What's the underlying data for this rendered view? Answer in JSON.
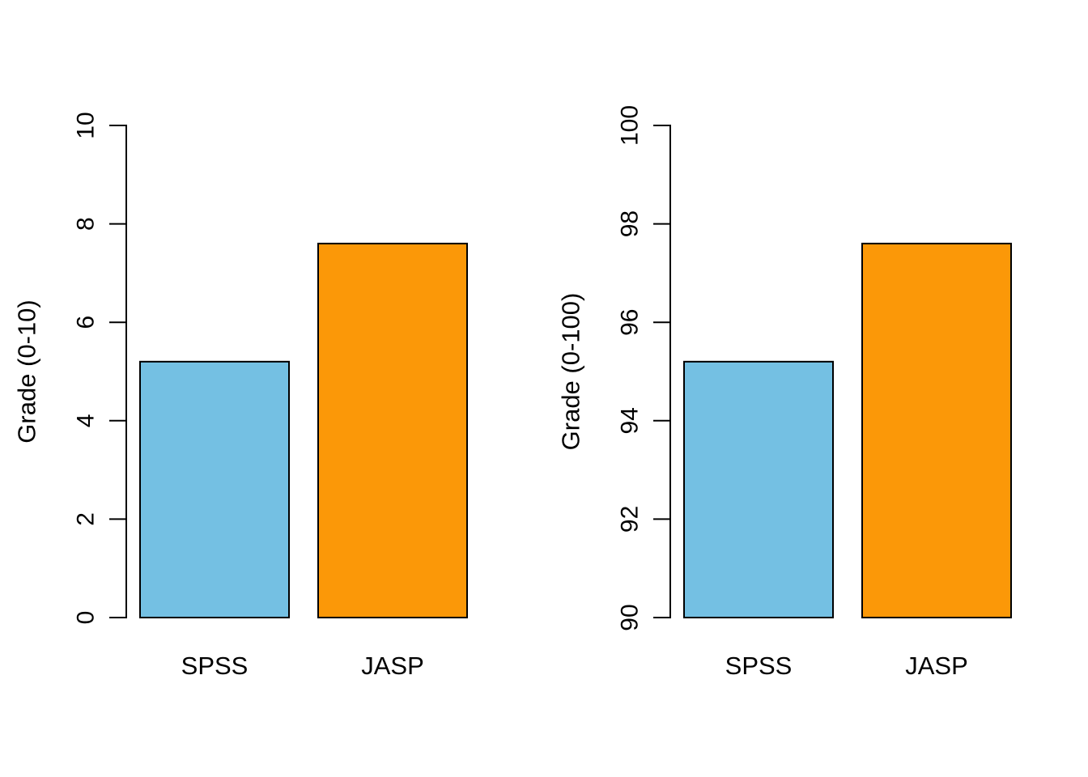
{
  "figure": {
    "background_color": "#ffffff",
    "axis_color": "#000000",
    "bar_border_color": "#000000",
    "text_color": "#000000"
  },
  "chart_data": [
    {
      "type": "bar",
      "panel": "left",
      "title": "",
      "xlabel": "",
      "ylabel": "Grade (0-10)",
      "categories": [
        "SPSS",
        "JASP"
      ],
      "values": [
        5.2,
        7.6
      ],
      "bar_colors": [
        "#74C0E3",
        "#FB9808"
      ],
      "ylim": [
        0,
        10
      ],
      "yticks": [
        0,
        2,
        4,
        6,
        8,
        10
      ],
      "ytick_labels": [
        "0",
        "2",
        "4",
        "6",
        "8",
        "10"
      ],
      "grid": false,
      "legend": "none",
      "tick_label_rotation_deg": 90
    },
    {
      "type": "bar",
      "panel": "right",
      "title": "",
      "xlabel": "",
      "ylabel": "Grade (0-100)",
      "categories": [
        "SPSS",
        "JASP"
      ],
      "values": [
        95.2,
        97.6
      ],
      "bar_colors": [
        "#74C0E3",
        "#FB9808"
      ],
      "ylim": [
        90,
        100
      ],
      "yticks": [
        90,
        92,
        94,
        96,
        98,
        100
      ],
      "ytick_labels": [
        "90",
        "92",
        "94",
        "96",
        "98",
        "100"
      ],
      "grid": false,
      "legend": "none",
      "tick_label_rotation_deg": 90
    }
  ]
}
